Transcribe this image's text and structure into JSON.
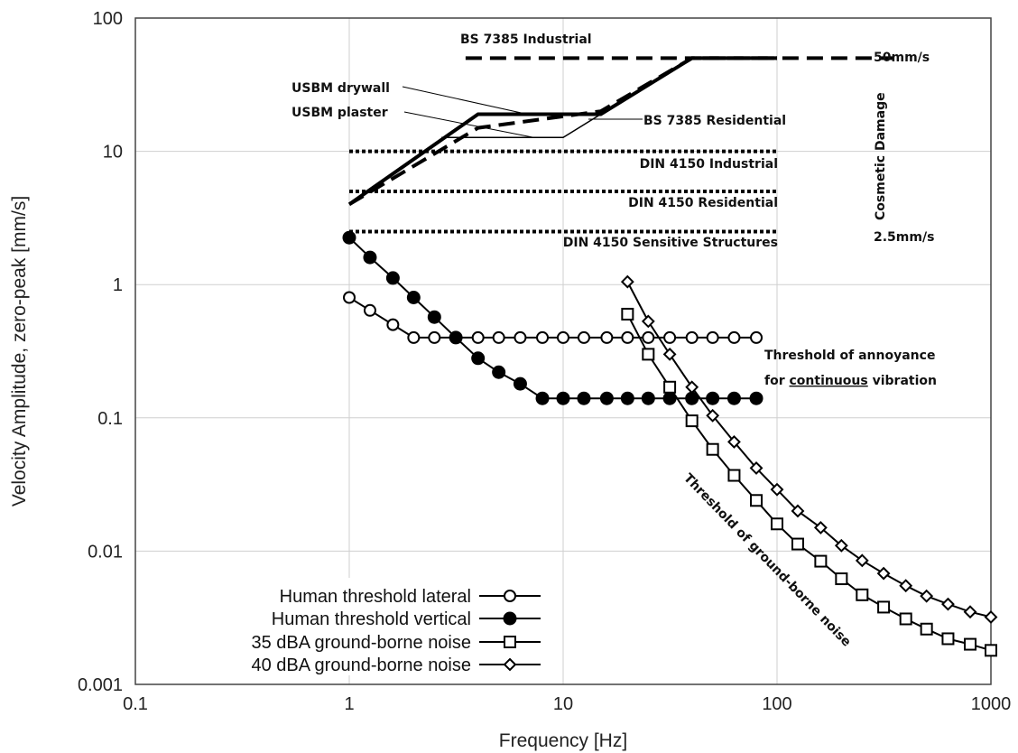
{
  "chart_data": {
    "type": "line",
    "xscale": "log",
    "yscale": "log",
    "xlim": [
      0.1,
      1000
    ],
    "ylim": [
      0.001,
      100
    ],
    "xlabel": "Frequency [Hz]",
    "ylabel": "Velocity Amplitude, zero-peak [mm/s]",
    "grid": true,
    "x_ticks": [
      "0.1",
      "1",
      "10",
      "100",
      "1000"
    ],
    "y_ticks": [
      "0.001",
      "0.01",
      "0.1",
      "1",
      "10",
      "100"
    ],
    "legend_position": "bottom-left",
    "series": [
      {
        "name": "Human threshold lateral",
        "marker": "open-circle",
        "x": [
          1,
          1.25,
          1.6,
          2,
          2.5,
          3.15,
          4,
          5,
          6.3,
          8,
          10,
          12.5,
          16,
          20,
          25,
          31.5,
          40,
          50,
          63,
          80
        ],
        "y": [
          0.8,
          0.64,
          0.5,
          0.4,
          0.4,
          0.4,
          0.4,
          0.4,
          0.4,
          0.4,
          0.4,
          0.4,
          0.4,
          0.4,
          0.4,
          0.4,
          0.4,
          0.4,
          0.4,
          0.4
        ]
      },
      {
        "name": "Human threshold vertical",
        "marker": "filled-circle",
        "x": [
          1,
          1.25,
          1.6,
          2,
          2.5,
          3.15,
          4,
          5,
          6.3,
          8,
          10,
          12.5,
          16,
          20,
          25,
          31.5,
          40,
          50,
          63,
          80
        ],
        "y": [
          2.25,
          1.6,
          1.12,
          0.8,
          0.57,
          0.4,
          0.28,
          0.22,
          0.18,
          0.14,
          0.14,
          0.14,
          0.14,
          0.14,
          0.14,
          0.14,
          0.14,
          0.14,
          0.14,
          0.14
        ]
      },
      {
        "name": "35 dBA ground-borne noise",
        "marker": "open-square",
        "x": [
          20,
          25,
          31.5,
          40,
          50,
          63,
          80,
          100,
          125,
          160,
          200,
          250,
          315,
          400,
          500,
          630,
          800,
          1000
        ],
        "y": [
          0.6,
          0.3,
          0.17,
          0.095,
          0.058,
          0.037,
          0.024,
          0.016,
          0.0113,
          0.0084,
          0.0062,
          0.0047,
          0.0038,
          0.0031,
          0.0026,
          0.0022,
          0.002,
          0.0018
        ]
      },
      {
        "name": "40 dBA ground-borne noise",
        "marker": "open-diamond",
        "x": [
          20,
          25,
          31.5,
          40,
          50,
          63,
          80,
          100,
          125,
          160,
          200,
          250,
          315,
          400,
          500,
          630,
          800,
          1000
        ],
        "y": [
          1.05,
          0.53,
          0.3,
          0.17,
          0.104,
          0.066,
          0.042,
          0.029,
          0.02,
          0.015,
          0.011,
          0.0085,
          0.0068,
          0.0055,
          0.0046,
          0.004,
          0.0035,
          0.0032
        ]
      }
    ],
    "reference_lines": [
      {
        "label": "BS 7385 Industrial",
        "style": "dashed",
        "x": [
          3.5,
          350
        ],
        "y": [
          50,
          50
        ]
      },
      {
        "label": "BS 7385 Residential",
        "style": "dashed",
        "x": [
          1,
          4,
          15,
          40,
          100
        ],
        "y": [
          4,
          15,
          20,
          50,
          50
        ]
      },
      {
        "label": "USBM drywall",
        "style": "thick",
        "x": [
          1,
          4,
          15,
          40,
          100
        ],
        "y": [
          4,
          19,
          19,
          50,
          50
        ]
      },
      {
        "label": "USBM plaster",
        "style": "thin",
        "x": [
          2.7,
          5,
          10,
          15
        ],
        "y": [
          12.7,
          12.7,
          12.7,
          19
        ]
      },
      {
        "label": "DIN 4150 Industrial",
        "style": "dotted",
        "x": [
          1,
          100
        ],
        "y": [
          10,
          10
        ]
      },
      {
        "label": "DIN 4150 Residential",
        "style": "dotted",
        "x": [
          1,
          100
        ],
        "y": [
          5,
          5
        ]
      },
      {
        "label": "DIN 4150 Sensitive Structures",
        "style": "dotted",
        "x": [
          1,
          100
        ],
        "y": [
          2.5,
          2.5
        ]
      }
    ],
    "annotations": {
      "fifty": "50mm/s",
      "cosmetic": "Cosmetic Damage",
      "two_five": "2.5mm/s",
      "annoy1": "Threshold of annoyance",
      "annoy2_pre": "for ",
      "annoy2_u": "continuous",
      "annoy2_post": " vibration",
      "noise": "Threshold of ground-borne noise"
    }
  }
}
